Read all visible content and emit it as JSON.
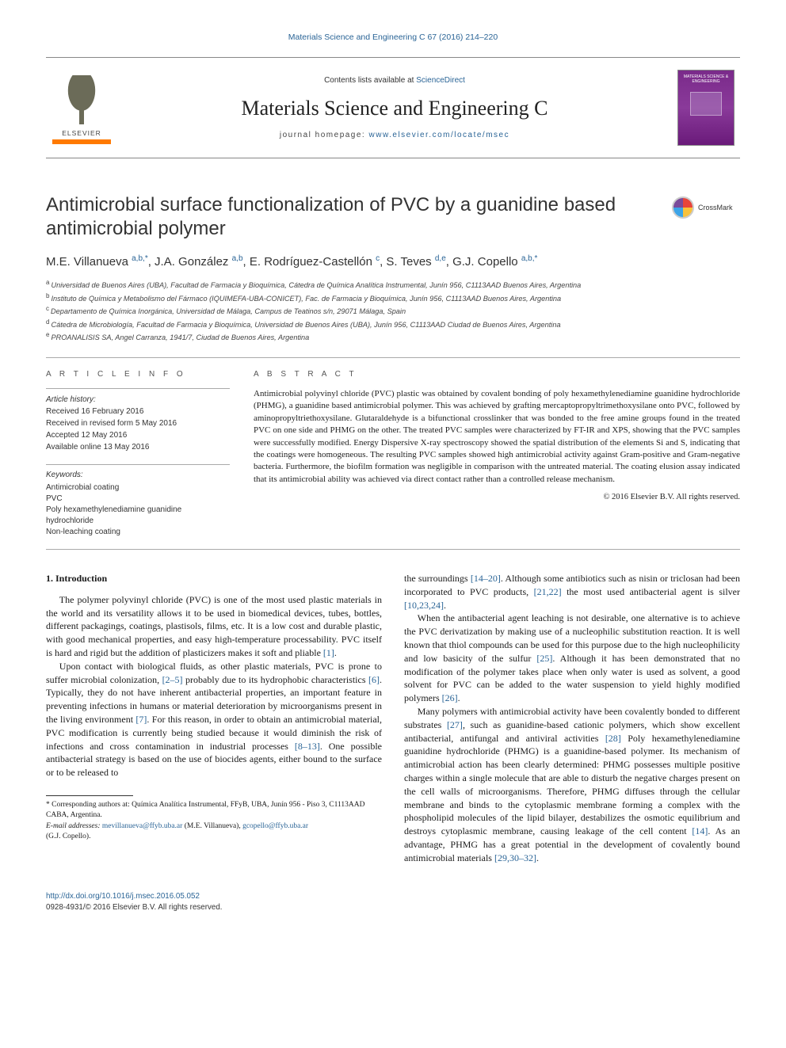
{
  "citation": {
    "text": "Materials Science and Engineering C 67 (2016) 214–220",
    "url": "#"
  },
  "header": {
    "contents_prefix": "Contents lists available at ",
    "contents_link": "ScienceDirect",
    "journal": "Materials Science and Engineering C",
    "homepage_prefix": "journal homepage: ",
    "homepage_url": "www.elsevier.com/locate/msec",
    "publisher_logo": "ELSEVIER",
    "cover_title": "MATERIALS SCIENCE & ENGINEERING"
  },
  "article": {
    "title": "Antimicrobial surface functionalization of PVC by a guanidine based antimicrobial polymer",
    "crossmark": "CrossMark",
    "authors_html": "M.E. Villanueva <sup>a,b,*</sup>, J.A. González <sup>a,b</sup>, E. Rodríguez-Castellón <sup>c</sup>, S. Teves <sup>d,e</sup>, G.J. Copello <sup>a,b,*</sup>",
    "affiliations": [
      {
        "sup": "a",
        "text": "Universidad de Buenos Aires (UBA), Facultad de Farmacia y Bioquímica, Cátedra de Química Analítica Instrumental, Junín 956, C1113AAD Buenos Aires, Argentina"
      },
      {
        "sup": "b",
        "text": "Instituto de Química y Metabolismo del Fármaco (IQUIMEFA-UBA-CONICET), Fac. de Farmacia y Bioquímica, Junín 956, C1113AAD Buenos Aires, Argentina"
      },
      {
        "sup": "c",
        "text": "Departamento de Química Inorgánica, Universidad de Málaga, Campus de Teatinos s/n, 29071 Málaga, Spain"
      },
      {
        "sup": "d",
        "text": "Cátedra de Microbiología, Facultad de Farmacia y Bioquímica, Universidad de Buenos Aires (UBA), Junín 956, C1113AAD Ciudad de Buenos Aires, Argentina"
      },
      {
        "sup": "e",
        "text": "PROANALISIS SA, Angel Carranza, 1941/7, Ciudad de Buenos Aires, Argentina"
      }
    ]
  },
  "info": {
    "article_info_heading": "A R T I C L E   I N F O",
    "history_label": "Article history:",
    "history": [
      "Received 16 February 2016",
      "Received in revised form 5 May 2016",
      "Accepted 12 May 2016",
      "Available online 13 May 2016"
    ],
    "keywords_label": "Keywords:",
    "keywords": [
      "Antimicrobial coating",
      "PVC",
      "Poly hexamethylenediamine guanidine hydrochloride",
      "Non-leaching coating"
    ]
  },
  "abstract": {
    "heading": "A B S T R A C T",
    "text": "Antimicrobial polyvinyl chloride (PVC) plastic was obtained by covalent bonding of poly hexamethylenediamine guanidine hydrochloride (PHMG), a guanidine based antimicrobial polymer. This was achieved by grafting mercaptopropyltrimethoxysilane onto PVC, followed by aminopropyltriethoxysilane. Glutaraldehyde is a bifunctional crosslinker that was bonded to the free amine groups found in the treated PVC on one side and PHMG on the other. The treated PVC samples were characterized by FT-IR and XPS, showing that the PVC samples were successfully modified. Energy Dispersive X-ray spectroscopy showed the spatial distribution of the elements Si and S, indicating that the coatings were homogeneous. The resulting PVC samples showed high antimicrobial activity against Gram-positive and Gram-negative bacteria. Furthermore, the biofilm formation was negligible in comparison with the untreated material. The coating elusion assay indicated that its antimicrobial ability was achieved via direct contact rather than a controlled release mechanism.",
    "copyright": "© 2016 Elsevier B.V. All rights reserved."
  },
  "body": {
    "section_heading": "1. Introduction",
    "p1": "The polymer polyvinyl chloride (PVC) is one of the most used plastic materials in the world and its versatility allows it to be used in biomedical devices, tubes, bottles, different packagings, coatings, plastisols, films, etc. It is a low cost and durable plastic, with good mechanical properties, and easy high-temperature processability. PVC itself is hard and rigid but the addition of plasticizers makes it soft and pliable ",
    "ref1": "[1]",
    "p1_end": ".",
    "p2": "Upon contact with biological fluids, as other plastic materials, PVC is prone to suffer microbial colonization, ",
    "ref2": "[2–5]",
    "p2_mid": " probably due to its hydrophobic characteristics ",
    "ref3": "[6]",
    "p2_mid2": ". Typically, they do not have inherent antibacterial properties, an important feature in preventing infections in humans or material deterioration by microorganisms present in the living environment ",
    "ref4": "[7]",
    "p2_mid3": ". For this reason, in order to obtain an antimicrobial material, PVC modification is currently being studied because it would diminish the risk of infections and cross contamination in industrial processes ",
    "ref5": "[8–13]",
    "p2_end": ". One possible antibacterial strategy is based on the use of biocides agents, either bound to the surface or to be released to",
    "p3_start": "the surroundings ",
    "ref6": "[14–20]",
    "p3_mid": ". Although some antibiotics such as nisin or triclosan had been incorporated to PVC products, ",
    "ref7": "[21,22]",
    "p3_mid2": " the most used antibacterial agent is silver ",
    "ref8": "[10,23,24]",
    "p3_end": ".",
    "p4": "When the antibacterial agent leaching is not desirable, one alternative is to achieve the PVC derivatization by making use of a nucleophilic substitution reaction. It is well known that thiol compounds can be used for this purpose due to the high nucleophilicity and low basicity of the sulfur ",
    "ref9": "[25]",
    "p4_mid": ". Although it has been demonstrated that no modification of the polymer takes place when only water is used as solvent, a good solvent for PVC can be added to the water suspension to yield highly modified polymers ",
    "ref10": "[26]",
    "p4_end": ".",
    "p5": "Many polymers with antimicrobial activity have been covalently bonded to different substrates ",
    "ref11": "[27]",
    "p5_mid": ", such as guanidine-based cationic polymers, which show excellent antibacterial, antifungal and antiviral activities ",
    "ref12": "[28]",
    "p5_mid2": " Poly hexamethylenediamine guanidine hydrochloride (PHMG) is a guanidine-based polymer. Its mechanism of antimicrobial action has been clearly determined: PHMG possesses multiple positive charges within a single molecule that are able to disturb the negative charges present on the cell walls of microorganisms. Therefore, PHMG diffuses through the cellular membrane and binds to the cytoplasmic membrane forming a complex with the phospholipid molecules of the lipid bilayer, destabilizes the osmotic equilibrium and destroys cytoplasmic membrane, causing leakage of the cell content ",
    "ref13": "[14]",
    "p5_mid3": ". As an advantage, PHMG has a great potential in the development of covalently bound antimicrobial materials ",
    "ref14": "[29,30–32]",
    "p5_end": "."
  },
  "footnotes": {
    "corr": "* Corresponding authors at: Química Analítica Instrumental, FFyB, UBA, Junín 956 - Piso 3, C1113AAD CABA, Argentina.",
    "email_label": "E-mail addresses: ",
    "email1": "mevillanueva@ffyb.uba.ar",
    "email1_name": " (M.E. Villanueva), ",
    "email2": "gcopello@ffyb.uba.ar",
    "email2_name": " (G.J. Copello)."
  },
  "footer": {
    "doi": "http://dx.doi.org/10.1016/j.msec.2016.05.052",
    "issn_line": "0928-4931/© 2016 Elsevier B.V. All rights reserved."
  },
  "colors": {
    "link": "#2a6496",
    "elsevier_orange": "#ff7a00",
    "cover_purple": "#7a2a8a",
    "text": "#1a1a1a",
    "rule": "#aaaaaa"
  }
}
